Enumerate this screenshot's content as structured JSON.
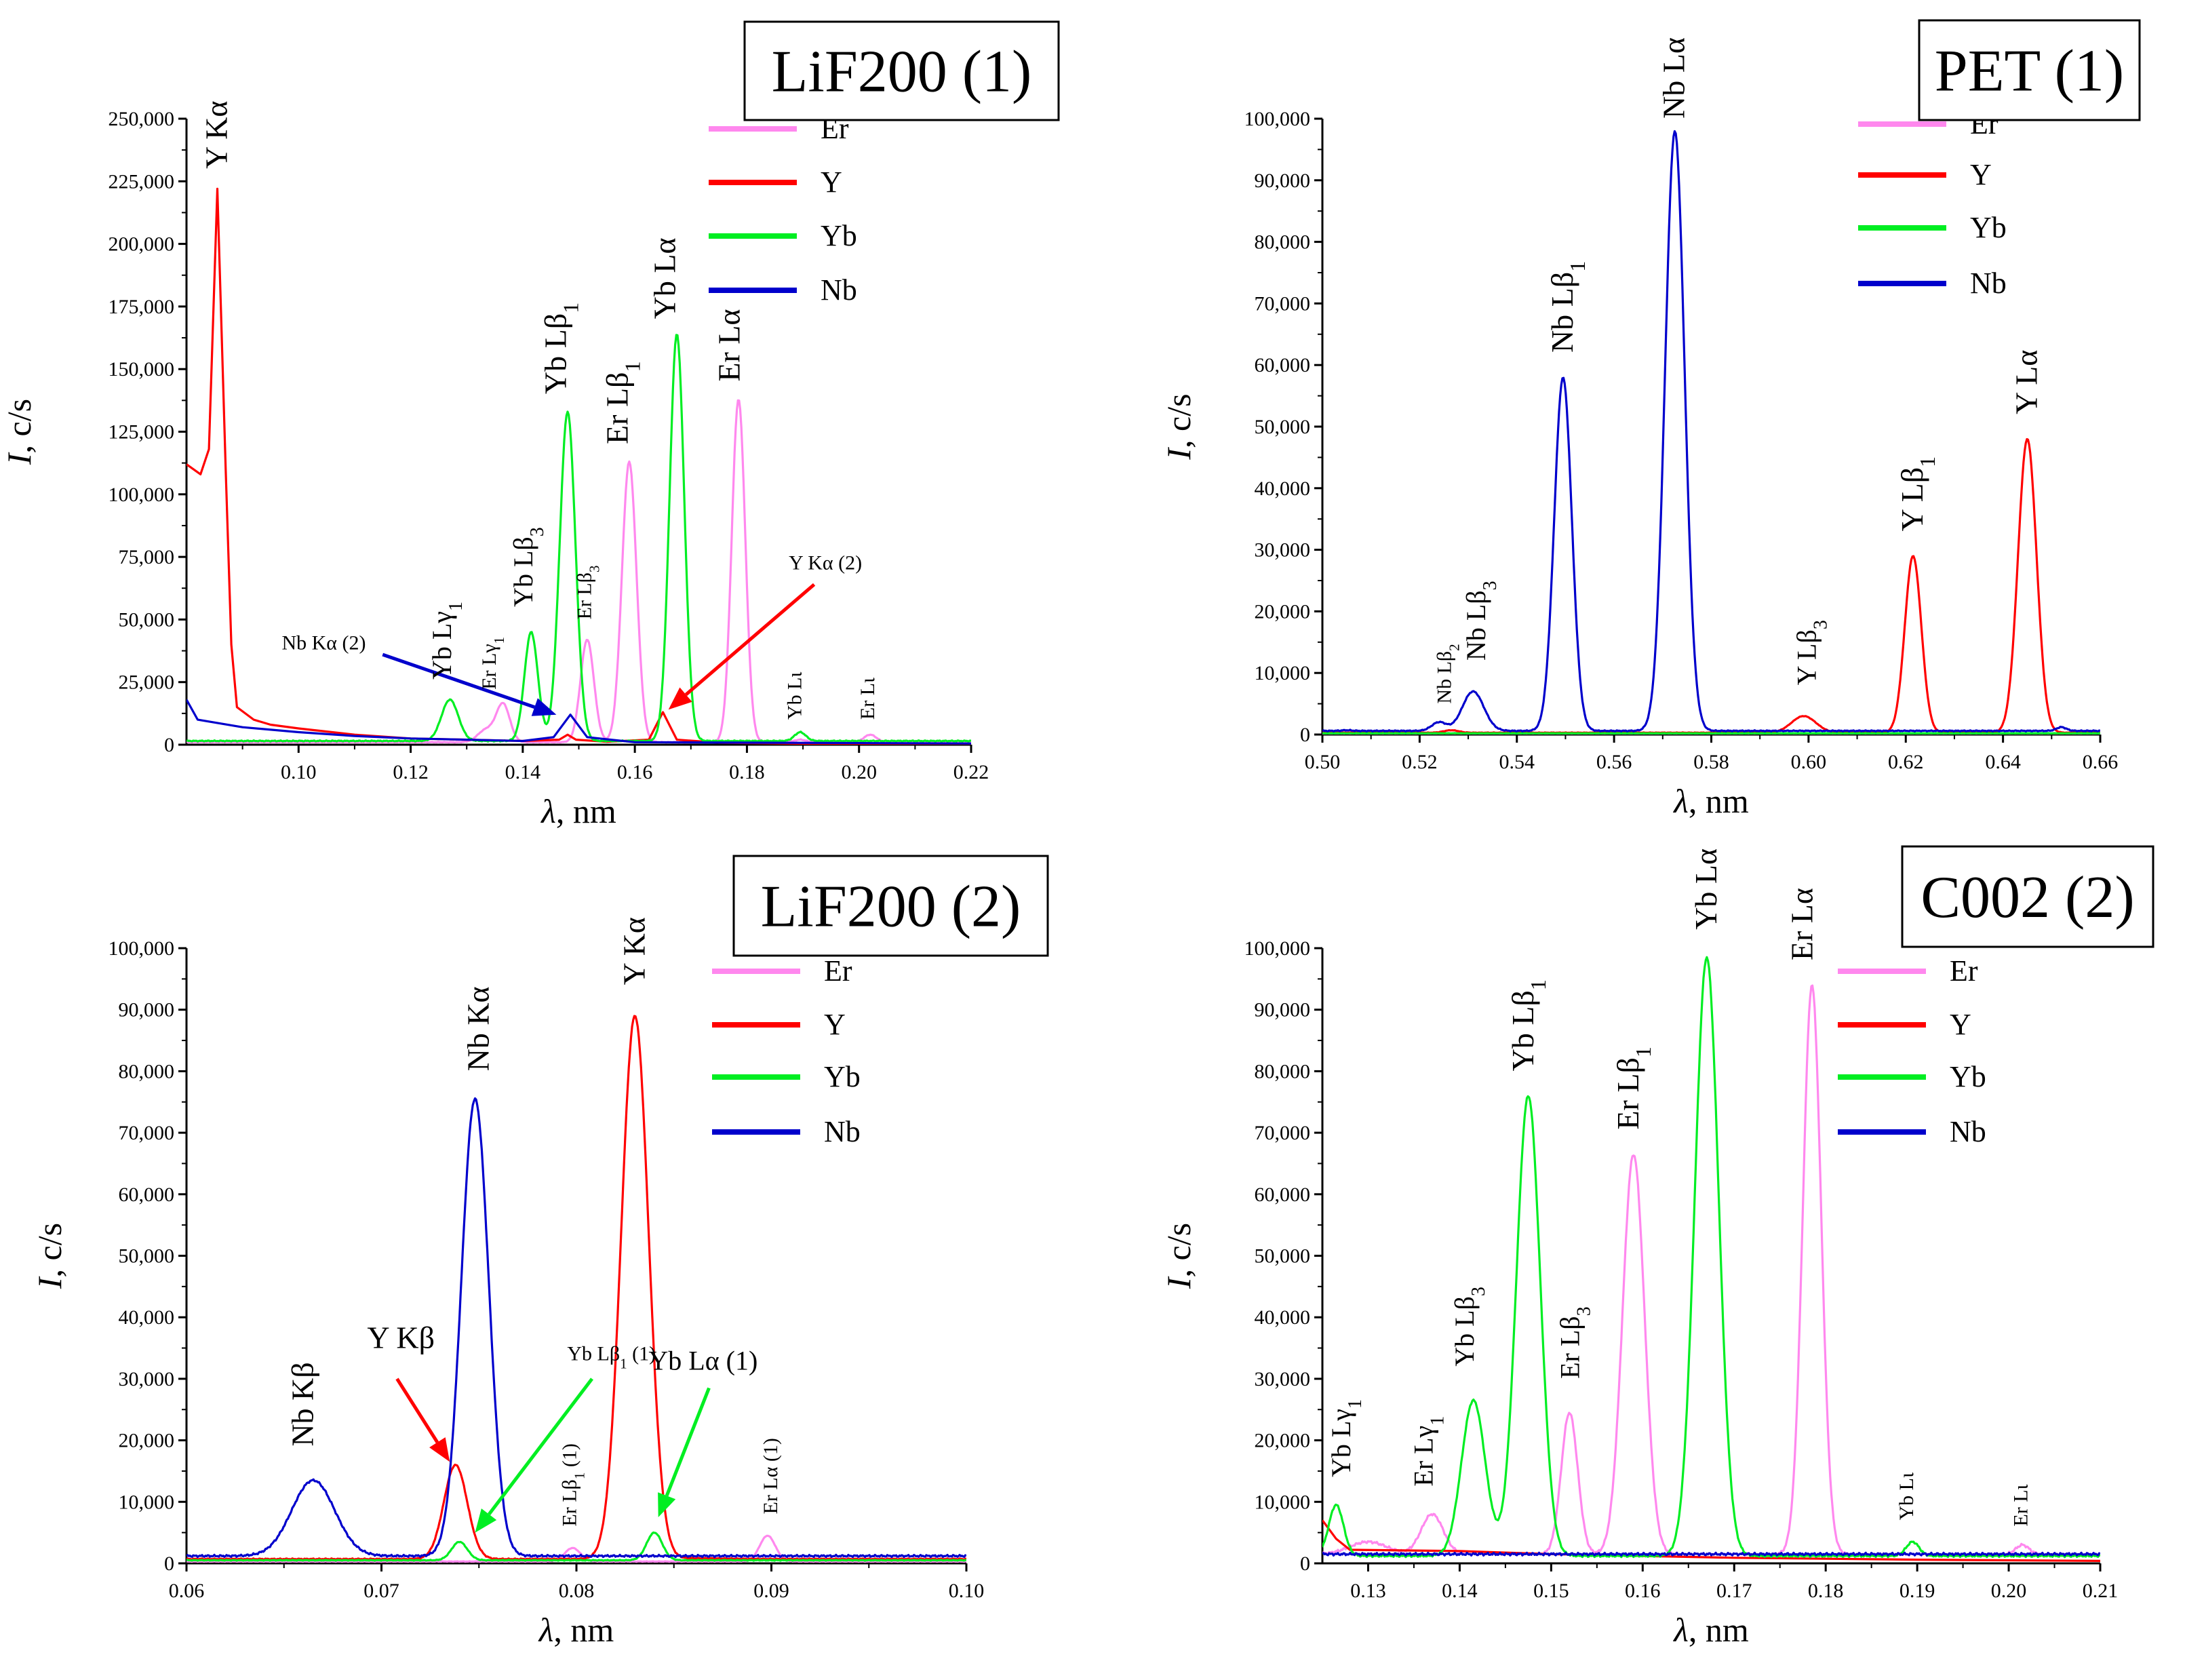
{
  "figure": {
    "colors": {
      "Er": "#ff88ee",
      "Y": "#ff0000",
      "Yb": "#00ee22",
      "Nb": "#0000cc"
    }
  },
  "chart_data": [
    {
      "id": "p1",
      "type": "line",
      "title": "LiF200 (1)",
      "xlabel": "λ, nm",
      "ylabel": "I, c/s",
      "xlim": [
        0.08,
        0.22
      ],
      "ylim": [
        0,
        250000
      ],
      "xticks": [
        0.1,
        0.12,
        0.14,
        0.16,
        0.18,
        0.2,
        0.22
      ],
      "xtick_labels": [
        "0.10",
        "0.12",
        "0.14",
        "0.16",
        "0.18",
        "0.20",
        "0.22"
      ],
      "yticks": [
        0,
        25000,
        50000,
        75000,
        100000,
        125000,
        150000,
        175000,
        200000,
        225000,
        250000
      ],
      "ytick_labels": [
        "0",
        "25,000",
        "50,000",
        "75,000",
        "100,000",
        "125,000",
        "150,000",
        "175,000",
        "200,000",
        "225,000",
        "250,000"
      ],
      "legend": [
        "Er",
        "Y",
        "Yb",
        "Nb"
      ],
      "series": [
        {
          "name": "Er",
          "baseline": 1000,
          "peaks": [
            [
              0.1335,
              6000,
              0.0015
            ],
            [
              0.1365,
              16000,
              0.0012
            ],
            [
              0.1515,
              42000,
              0.0012
            ],
            [
              0.159,
              113000,
              0.0013
            ],
            [
              0.1785,
              138000,
              0.0012
            ],
            [
              0.1895,
              2000,
              0.001
            ],
            [
              0.202,
              4000,
              0.0011
            ]
          ]
        },
        {
          "name": "Y",
          "points": [
            [
              0.08,
              112000
            ],
            [
              0.0825,
              108000
            ],
            [
              0.084,
              118000
            ],
            [
              0.0855,
              222000
            ],
            [
              0.087,
              110000
            ],
            [
              0.088,
              40000
            ],
            [
              0.089,
              15000
            ],
            [
              0.092,
              10000
            ],
            [
              0.095,
              8000
            ],
            [
              0.1,
              6500
            ],
            [
              0.11,
              4000
            ],
            [
              0.12,
              2500
            ],
            [
              0.13,
              2000
            ],
            [
              0.14,
              1500
            ],
            [
              0.1465,
              2000
            ],
            [
              0.148,
              4000
            ],
            [
              0.1495,
              2000
            ],
            [
              0.155,
              1200
            ],
            [
              0.1625,
              2000
            ],
            [
              0.165,
              13000
            ],
            [
              0.1675,
              2000
            ],
            [
              0.175,
              800
            ],
            [
              0.19,
              400
            ],
            [
              0.22,
              200
            ]
          ]
        },
        {
          "name": "Yb",
          "baseline": 1500,
          "peaks": [
            [
              0.127,
              18000,
              0.0015
            ],
            [
              0.1415,
              45000,
              0.0012
            ],
            [
              0.148,
              133000,
              0.0014
            ],
            [
              0.1675,
              164000,
              0.0013
            ],
            [
              0.1895,
              5000,
              0.001
            ]
          ]
        },
        {
          "name": "Nb",
          "points": [
            [
              0.08,
              18000
            ],
            [
              0.082,
              10000
            ],
            [
              0.09,
              7000
            ],
            [
              0.1,
              5000
            ],
            [
              0.11,
              3500
            ],
            [
              0.12,
              2500
            ],
            [
              0.13,
              2000
            ],
            [
              0.14,
              1500
            ],
            [
              0.1455,
              3000
            ],
            [
              0.1485,
              12000
            ],
            [
              0.1515,
              3000
            ],
            [
              0.16,
              1000
            ],
            [
              0.22,
              500
            ]
          ]
        }
      ],
      "annotations": [
        {
          "text": "Y Kα",
          "x": 0.0855,
          "y": 230000,
          "rotate": -90,
          "size": "big"
        },
        {
          "text": "Yb Lγ1",
          "x": 0.1255,
          "y": 26000,
          "rotate": -90,
          "size": "mid"
        },
        {
          "text": "Er Lγ1",
          "x": 0.1335,
          "y": 22000,
          "rotate": -90,
          "size": "sm"
        },
        {
          "text": "Yb Lβ3",
          "x": 0.14,
          "y": 55000,
          "rotate": -90,
          "size": "mid"
        },
        {
          "text": "Yb Lβ1",
          "x": 0.146,
          "y": 140000,
          "rotate": -90,
          "size": "big"
        },
        {
          "text": "Er Lβ3",
          "x": 0.1505,
          "y": 50000,
          "rotate": -90,
          "size": "sm"
        },
        {
          "text": "Er Lβ1",
          "x": 0.157,
          "y": 120000,
          "rotate": -90,
          "size": "big"
        },
        {
          "text": "Yb Lα",
          "x": 0.1655,
          "y": 170000,
          "rotate": -90,
          "size": "big"
        },
        {
          "text": "Er Lα",
          "x": 0.177,
          "y": 145000,
          "rotate": -90,
          "size": "big"
        },
        {
          "text": "Yb Lι",
          "x": 0.188,
          "y": 10000,
          "rotate": -90,
          "size": "sm"
        },
        {
          "text": "Er Lι",
          "x": 0.201,
          "y": 10000,
          "rotate": -90,
          "size": "sm"
        },
        {
          "text": "Nb Kα (2)",
          "x": 0.1045,
          "y": 38000,
          "rotate": 0,
          "size": "sm"
        },
        {
          "text": "Y Kα (2)",
          "x": 0.194,
          "y": 70000,
          "rotate": 0,
          "size": "sm"
        }
      ],
      "arrows": [
        {
          "color": "Nb",
          "from": [
            0.115,
            36000
          ],
          "to": [
            0.146,
            12000
          ]
        },
        {
          "color": "Y",
          "from": [
            0.192,
            64000
          ],
          "to": [
            0.166,
            14000
          ]
        }
      ]
    },
    {
      "id": "p2",
      "type": "line",
      "title": "PET (1)",
      "xlabel": "λ, nm",
      "ylabel": "I, c/s",
      "xlim": [
        0.5,
        0.66
      ],
      "ylim": [
        0,
        100000
      ],
      "xticks": [
        0.5,
        0.52,
        0.54,
        0.56,
        0.58,
        0.6,
        0.62,
        0.64,
        0.66
      ],
      "xtick_labels": [
        "0.50",
        "0.52",
        "0.54",
        "0.56",
        "0.58",
        "0.60",
        "0.62",
        "0.64",
        "0.66"
      ],
      "yticks": [
        0,
        10000,
        20000,
        30000,
        40000,
        50000,
        60000,
        70000,
        80000,
        90000,
        100000
      ],
      "ytick_labels": [
        "0",
        "10,000",
        "20,000",
        "30,000",
        "40,000",
        "50,000",
        "60,000",
        "70,000",
        "80,000",
        "90,000",
        "100,000"
      ],
      "legend": [
        "Er",
        "Y",
        "Yb",
        "Nb"
      ],
      "series": [
        {
          "name": "Er",
          "baseline": 100,
          "peaks": []
        },
        {
          "name": "Y",
          "baseline": 300,
          "peaks": [
            [
              0.5265,
              700,
              0.0015
            ],
            [
              0.599,
              3000,
              0.0025
            ],
            [
              0.6215,
              29000,
              0.0017
            ],
            [
              0.645,
              48000,
              0.0019
            ]
          ]
        },
        {
          "name": "Yb",
          "baseline": 200,
          "peaks": []
        },
        {
          "name": "Nb",
          "baseline": 600,
          "peaks": [
            [
              0.505,
              700,
              0.001
            ],
            [
              0.517,
              600,
              0.001
            ],
            [
              0.524,
              2000,
              0.0015
            ],
            [
              0.531,
              7000,
              0.0022
            ],
            [
              0.5495,
              58000,
              0.0018
            ],
            [
              0.5725,
              98000,
              0.002
            ],
            [
              0.652,
              1200,
              0.001
            ]
          ]
        }
      ],
      "annotations": [
        {
          "text": "Nb Lβ2",
          "x": 0.5245,
          "y": 5000,
          "rotate": -90,
          "size": "sm"
        },
        {
          "text": "Nb Lβ3",
          "x": 0.5315,
          "y": 12000,
          "rotate": -90,
          "size": "mid"
        },
        {
          "text": "Nb Lβ1",
          "x": 0.5495,
          "y": 62000,
          "rotate": -90,
          "size": "big"
        },
        {
          "text": "Nb Lα",
          "x": 0.5725,
          "y": 100000,
          "rotate": -90,
          "size": "big"
        },
        {
          "text": "Y Lβ3",
          "x": 0.5995,
          "y": 8000,
          "rotate": -90,
          "size": "mid"
        },
        {
          "text": "Y Lβ1",
          "x": 0.6215,
          "y": 33000,
          "rotate": -90,
          "size": "big"
        },
        {
          "text": "Y Lα",
          "x": 0.645,
          "y": 52000,
          "rotate": -90,
          "size": "big"
        }
      ],
      "arrows": []
    },
    {
      "id": "p3",
      "type": "line",
      "title": "LiF200 (2)",
      "xlabel": "λ, nm",
      "ylabel": "I, c/s",
      "xlim": [
        0.06,
        0.1
      ],
      "ylim": [
        0,
        100000
      ],
      "xticks": [
        0.06,
        0.07,
        0.08,
        0.09,
        0.1
      ],
      "xtick_labels": [
        "0.06",
        "0.07",
        "0.08",
        "0.09",
        "0.10"
      ],
      "yticks": [
        0,
        10000,
        20000,
        30000,
        40000,
        50000,
        60000,
        70000,
        80000,
        90000,
        100000
      ],
      "ytick_labels": [
        "0",
        "10,000",
        "20,000",
        "30,000",
        "40,000",
        "50,000",
        "60,000",
        "70,000",
        "80,000",
        "90,000",
        "100,000"
      ],
      "legend": [
        "Er",
        "Y",
        "Yb",
        "Nb"
      ],
      "series": [
        {
          "name": "Er",
          "baseline": 300,
          "peaks": [
            [
              0.0798,
              2500,
              0.0004
            ],
            [
              0.0898,
              4500,
              0.0004
            ]
          ]
        },
        {
          "name": "Y",
          "baseline": 700,
          "peaks": [
            [
              0.0738,
              16000,
              0.0006
            ],
            [
              0.083,
              89000,
              0.0007
            ],
            [
              0.086,
              800,
              0.0015
            ]
          ]
        },
        {
          "name": "Yb",
          "baseline": 500,
          "peaks": [
            [
              0.074,
              3500,
              0.0004
            ],
            [
              0.084,
              5000,
              0.0004
            ]
          ]
        },
        {
          "name": "Nb",
          "baseline": 1200,
          "peaks": [
            [
              0.0665,
              13500,
              0.0011
            ],
            [
              0.0748,
              75500,
              0.0007
            ]
          ]
        }
      ],
      "annotations": [
        {
          "text": "Nb Kβ",
          "x": 0.066,
          "y": 19000,
          "rotate": -90,
          "size": "big"
        },
        {
          "text": "Y Kβ",
          "x": 0.071,
          "y": 35000,
          "rotate": 0,
          "size": "big"
        },
        {
          "text": "Nb Kα",
          "x": 0.075,
          "y": 80000,
          "rotate": -90,
          "size": "big"
        },
        {
          "text": "Y Kα",
          "x": 0.083,
          "y": 94000,
          "rotate": -90,
          "size": "big"
        },
        {
          "text": "Yb Lβ1 (1)",
          "x": 0.0818,
          "y": 33000,
          "rotate": 0,
          "size": "sm"
        },
        {
          "text": "Er Lβ1 (1)",
          "x": 0.0795,
          "y": 6000,
          "rotate": -90,
          "size": "sm"
        },
        {
          "text": "Yb Lα (1)",
          "x": 0.0865,
          "y": 31500,
          "rotate": 0,
          "size": "mid"
        },
        {
          "text": "Er Lα (1)",
          "x": 0.0898,
          "y": 8000,
          "rotate": -90,
          "size": "sm"
        }
      ],
      "arrows": [
        {
          "color": "Y",
          "from": [
            0.0708,
            30000
          ],
          "to": [
            0.0735,
            16500
          ]
        },
        {
          "color": "Yb",
          "from": [
            0.0808,
            30000
          ],
          "to": [
            0.0748,
            5000
          ]
        },
        {
          "color": "Yb",
          "from": [
            0.0868,
            28500
          ],
          "to": [
            0.0842,
            7500
          ]
        }
      ]
    },
    {
      "id": "p4",
      "type": "line",
      "title": "C002 (2)",
      "xlabel": "λ, nm",
      "ylabel": "I, c/s",
      "xlim": [
        0.125,
        0.21
      ],
      "ylim": [
        0,
        100000
      ],
      "xticks": [
        0.13,
        0.14,
        0.15,
        0.16,
        0.17,
        0.18,
        0.19,
        0.2,
        0.21
      ],
      "xtick_labels": [
        "0.13",
        "0.14",
        "0.15",
        "0.16",
        "0.17",
        "0.18",
        "0.19",
        "0.20",
        "0.21"
      ],
      "yticks": [
        0,
        10000,
        20000,
        30000,
        40000,
        50000,
        60000,
        70000,
        80000,
        90000,
        100000
      ],
      "ytick_labels": [
        "0",
        "10,000",
        "20,000",
        "30,000",
        "40,000",
        "50,000",
        "60,000",
        "70,000",
        "80,000",
        "90,000",
        "100,000"
      ],
      "legend": [
        "Er",
        "Y",
        "Yb",
        "Nb"
      ],
      "series": [
        {
          "name": "Er",
          "baseline": 1500,
          "peaks": [
            [
              0.13,
              3500,
              0.002
            ],
            [
              0.137,
              8000,
              0.0012
            ],
            [
              0.152,
              24500,
              0.0009
            ],
            [
              0.159,
              66500,
              0.0012
            ],
            [
              0.1785,
              94000,
              0.001
            ],
            [
              0.2015,
              3000,
              0.0007
            ]
          ]
        },
        {
          "name": "Y",
          "points": [
            [
              0.125,
              7000
            ],
            [
              0.1265,
              4000
            ],
            [
              0.128,
              2200
            ],
            [
              0.14,
              2000
            ],
            [
              0.15,
              1500
            ],
            [
              0.16,
              1200
            ],
            [
              0.17,
              900
            ],
            [
              0.19,
              600
            ],
            [
              0.21,
              400
            ]
          ]
        },
        {
          "name": "Yb",
          "baseline": 1200,
          "peaks": [
            [
              0.1265,
              9500,
              0.0008
            ],
            [
              0.1415,
              26500,
              0.0013
            ],
            [
              0.1475,
              76000,
              0.0013
            ],
            [
              0.167,
              98500,
              0.0013
            ],
            [
              0.1895,
              3500,
              0.0007
            ]
          ]
        },
        {
          "name": "Nb",
          "baseline": 1500,
          "peaks": [
            [
              0.1545,
              1500,
              0.0015
            ]
          ]
        }
      ],
      "annotations": [
        {
          "text": "Yb Lγ1",
          "x": 0.127,
          "y": 14000,
          "rotate": -90,
          "size": "mid"
        },
        {
          "text": "Er Lγ1",
          "x": 0.136,
          "y": 12500,
          "rotate": -90,
          "size": "mid"
        },
        {
          "text": "Yb Lβ3",
          "x": 0.1405,
          "y": 32000,
          "rotate": -90,
          "size": "mid"
        },
        {
          "text": "Yb Lβ1",
          "x": 0.147,
          "y": 80000,
          "rotate": -90,
          "size": "big"
        },
        {
          "text": "Er Lβ3",
          "x": 0.152,
          "y": 30000,
          "rotate": -90,
          "size": "mid"
        },
        {
          "text": "Er Lβ1",
          "x": 0.1585,
          "y": 70500,
          "rotate": -90,
          "size": "big"
        },
        {
          "text": "Yb Lα",
          "x": 0.167,
          "y": 103000,
          "rotate": -90,
          "size": "big"
        },
        {
          "text": "Er Lα",
          "x": 0.1775,
          "y": 98000,
          "rotate": -90,
          "size": "big"
        },
        {
          "text": "Yb Lι",
          "x": 0.1885,
          "y": 7000,
          "rotate": -90,
          "size": "sm"
        },
        {
          "text": "Er Lι",
          "x": 0.201,
          "y": 6000,
          "rotate": -90,
          "size": "sm"
        }
      ],
      "arrows": []
    }
  ]
}
